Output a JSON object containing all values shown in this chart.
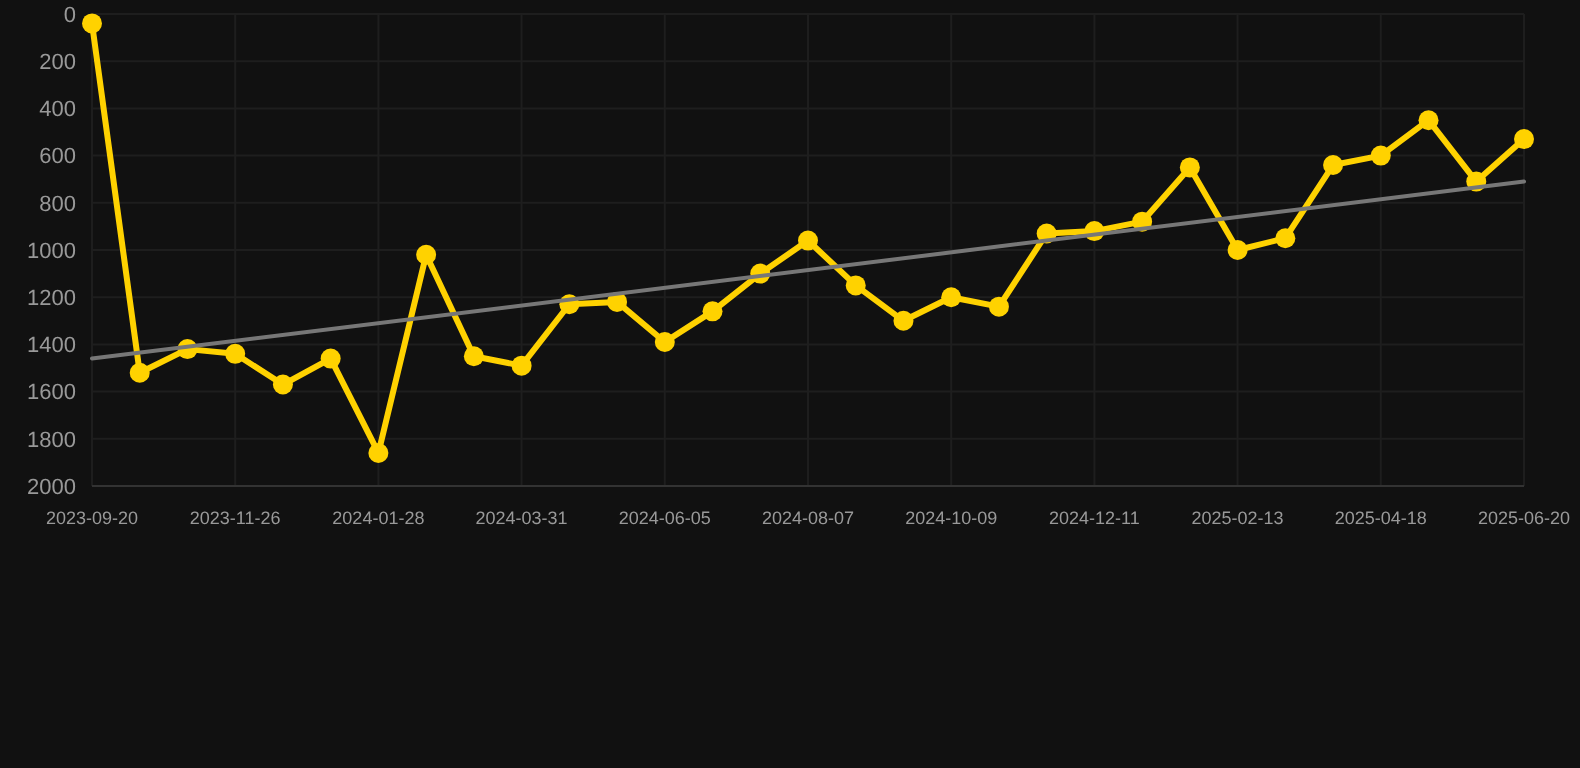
{
  "chart_data": {
    "type": "line",
    "categories": [
      "2023-09-20",
      null,
      null,
      "2023-11-26",
      null,
      null,
      "2024-01-28",
      null,
      null,
      "2024-03-31",
      null,
      null,
      "2024-06-05",
      null,
      null,
      "2024-08-07",
      null,
      null,
      "2024-10-09",
      null,
      null,
      "2024-12-11",
      null,
      null,
      "2025-02-13",
      null,
      null,
      "2025-04-18",
      null,
      null,
      "2025-06-20"
    ],
    "series": [
      {
        "color": "#ffd200",
        "marker": "circle",
        "values": [
          40,
          1520,
          1420,
          1440,
          1570,
          1460,
          1860,
          1020,
          1450,
          1490,
          1230,
          1220,
          1390,
          1260,
          1100,
          960,
          1150,
          1300,
          1200,
          1240,
          930,
          920,
          880,
          650,
          1000,
          950,
          640,
          600,
          450,
          710,
          530
        ]
      },
      {
        "type": "line",
        "color": "#777777",
        "marker": "none",
        "values": [
          1460,
          null,
          null,
          null,
          null,
          null,
          null,
          null,
          null,
          null,
          null,
          null,
          null,
          null,
          null,
          null,
          null,
          null,
          null,
          null,
          null,
          null,
          null,
          null,
          null,
          null,
          null,
          null,
          null,
          null,
          710
        ]
      }
    ],
    "ylim": [
      2000,
      0
    ],
    "yticks": [
      0,
      200,
      400,
      600,
      800,
      1000,
      1200,
      1400,
      1600,
      1800,
      2000
    ],
    "grid": true
  }
}
